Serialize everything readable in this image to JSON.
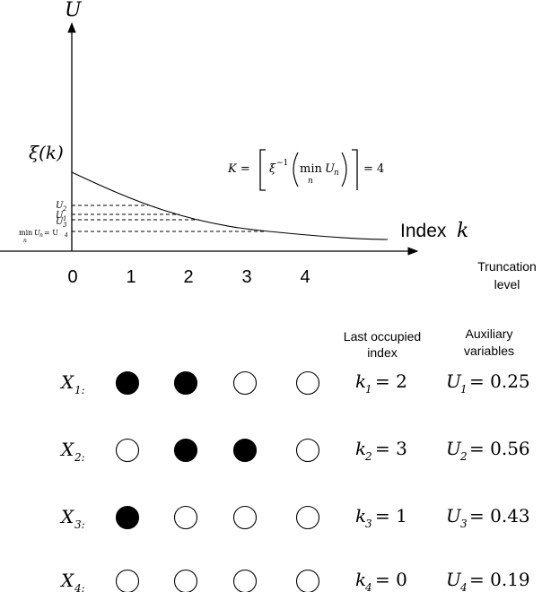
{
  "plot": {
    "y_axis_label": "U",
    "x_axis_label": "Index",
    "x_axis_var": "k",
    "curve_label": "ξ(k)",
    "ticks": [
      "0",
      "1",
      "2",
      "3",
      "4"
    ],
    "u_labels": {
      "u2": "U",
      "u2_sub": "2",
      "u1": "U",
      "u1_sub": "1",
      "u3": "U",
      "u3_sub": "3",
      "min_label": "min",
      "min_sub": "n",
      "min_u": "U",
      "min_u_sub": "n",
      "min_eq": "= U",
      "min_eq_sub": "4"
    },
    "formula": {
      "lhs": "K =",
      "xi": "ξ",
      "xi_sup": "−1",
      "min": "min",
      "min_sub": "n",
      "u": "U",
      "u_sub": "n",
      "rhs": "= 4"
    }
  },
  "headers": {
    "truncation_1": "Truncation",
    "truncation_2": "level",
    "last_1": "Last occupied",
    "last_2": "index",
    "aux_1": "Auxiliary",
    "aux_2": "variables"
  },
  "rows": [
    {
      "x": "X",
      "x_sub": "1:",
      "occupied": [
        true,
        true,
        false,
        false
      ],
      "k": "k",
      "k_sub": "1",
      "k_val": "= 2",
      "u": "U",
      "u_sub": "1",
      "u_val": "= 0.25"
    },
    {
      "x": "X",
      "x_sub": "2:",
      "occupied": [
        false,
        true,
        true,
        false
      ],
      "k": "k",
      "k_sub": "2",
      "k_val": "= 3",
      "u": "U",
      "u_sub": "2",
      "u_val": "= 0.56"
    },
    {
      "x": "X",
      "x_sub": "3:",
      "occupied": [
        true,
        false,
        false,
        false
      ],
      "k": "k",
      "k_sub": "3",
      "k_val": "= 1",
      "u": "U",
      "u_sub": "3",
      "u_val": "= 0.43"
    },
    {
      "x": "X",
      "x_sub": "4:",
      "occupied": [
        false,
        false,
        false,
        false
      ],
      "k": "k",
      "k_sub": "4",
      "k_val": "= 0",
      "u": "U",
      "u_sub": "4",
      "u_val": "= 0.19"
    }
  ]
}
